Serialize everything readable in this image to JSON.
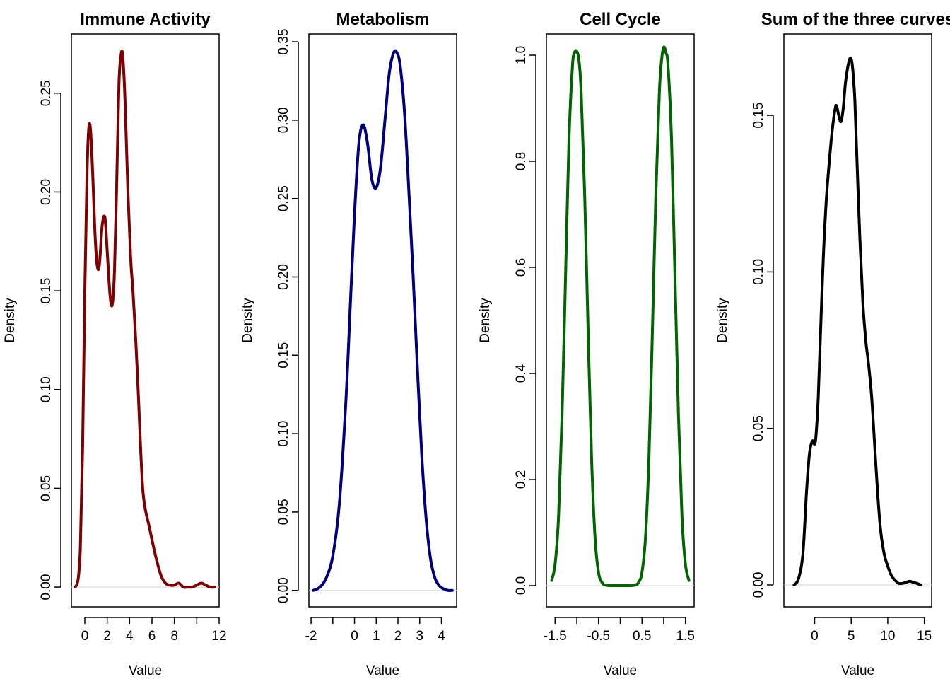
{
  "chart_data": [
    {
      "type": "line",
      "title": "Immune Activity",
      "xlabel": "Value",
      "ylabel": "Density",
      "color": "#7f0000",
      "xlim": [
        -1.2,
        12
      ],
      "ylim": [
        -0.01,
        0.28
      ],
      "xticks": [
        0,
        2,
        4,
        6,
        8,
        10,
        12
      ],
      "xtick_labels": [
        "0",
        "2",
        "4",
        "6",
        "8",
        "",
        "12"
      ],
      "yticks": [
        0.0,
        0.05,
        0.1,
        0.15,
        0.2,
        0.25
      ],
      "ytick_labels": [
        "0.00",
        "0.05",
        "0.10",
        "0.15",
        "0.20",
        "0.25"
      ],
      "series": [
        {
          "x": [
            -0.85,
            -0.6,
            -0.4,
            -0.2,
            0.0,
            0.2,
            0.35,
            0.5,
            0.7,
            0.9,
            1.1,
            1.3,
            1.55,
            1.8,
            2.0,
            2.25,
            2.45,
            2.65,
            2.85,
            3.05,
            3.25,
            3.4,
            3.6,
            3.85,
            4.1,
            4.3,
            4.55,
            4.8,
            5.0,
            5.2,
            5.45,
            5.7,
            6.0,
            6.4,
            6.8,
            7.2,
            7.6,
            8.0,
            8.4,
            8.8,
            9.2,
            9.6,
            10.0,
            10.4,
            10.8,
            11.2,
            11.6
          ],
          "y": [
            0.0,
            0.004,
            0.02,
            0.07,
            0.15,
            0.21,
            0.232,
            0.232,
            0.21,
            0.18,
            0.163,
            0.163,
            0.183,
            0.187,
            0.17,
            0.148,
            0.143,
            0.16,
            0.205,
            0.255,
            0.27,
            0.268,
            0.245,
            0.2,
            0.166,
            0.15,
            0.125,
            0.095,
            0.068,
            0.048,
            0.038,
            0.032,
            0.024,
            0.014,
            0.006,
            0.002,
            0.001,
            0.001,
            0.002,
            0.0,
            0.0,
            0.0,
            0.001,
            0.002,
            0.001,
            0.0,
            0.0
          ]
        }
      ]
    },
    {
      "type": "line",
      "title": "Metabolism",
      "xlabel": "Value",
      "ylabel": "Density",
      "color": "#00007f",
      "xlim": [
        -2.1,
        4.7
      ],
      "ylim": [
        -0.0105,
        0.355
      ],
      "xticks": [
        -2,
        -1,
        0,
        1,
        2,
        3,
        4
      ],
      "xtick_labels": [
        "-2",
        "",
        "0",
        "1",
        "2",
        "3",
        "4"
      ],
      "yticks": [
        0.0,
        0.05,
        0.1,
        0.15,
        0.2,
        0.25,
        0.3,
        0.35
      ],
      "ytick_labels": [
        "0.00",
        "0.05",
        "0.10",
        "0.15",
        "0.20",
        "0.25",
        "0.30",
        "0.35"
      ],
      "series": [
        {
          "x": [
            -1.9,
            -1.6,
            -1.3,
            -1.0,
            -0.7,
            -0.4,
            -0.2,
            0.0,
            0.2,
            0.4,
            0.6,
            0.8,
            1.0,
            1.2,
            1.4,
            1.6,
            1.8,
            1.95,
            2.1,
            2.3,
            2.5,
            2.7,
            2.9,
            3.1,
            3.3,
            3.5,
            3.7,
            3.9,
            4.1,
            4.3,
            4.5
          ],
          "y": [
            0.0,
            0.002,
            0.008,
            0.022,
            0.055,
            0.12,
            0.18,
            0.24,
            0.285,
            0.297,
            0.285,
            0.262,
            0.257,
            0.27,
            0.3,
            0.33,
            0.343,
            0.343,
            0.335,
            0.305,
            0.255,
            0.2,
            0.14,
            0.085,
            0.045,
            0.02,
            0.008,
            0.003,
            0.001,
            0.0,
            0.0
          ]
        }
      ]
    },
    {
      "type": "line",
      "title": "Cell Cycle",
      "xlabel": "Value",
      "ylabel": "Density",
      "color": "#006400",
      "xlim": [
        -1.7,
        1.7
      ],
      "ylim": [
        -0.04,
        1.04
      ],
      "xticks": [
        -1.5,
        -1.0,
        -0.5,
        0.0,
        0.5,
        1.0,
        1.5
      ],
      "xtick_labels": [
        "-1.5",
        "",
        "-0.5",
        "",
        "0.5",
        "",
        "1.5"
      ],
      "yticks": [
        0.0,
        0.2,
        0.4,
        0.6,
        0.8,
        1.0
      ],
      "ytick_labels": [
        "0.0",
        "0.2",
        "0.4",
        "0.6",
        "0.8",
        "1.0"
      ],
      "series": [
        {
          "x": [
            -1.58,
            -1.5,
            -1.42,
            -1.34,
            -1.26,
            -1.18,
            -1.1,
            -1.05,
            -1.0,
            -0.95,
            -0.9,
            -0.82,
            -0.74,
            -0.66,
            -0.58,
            -0.5,
            -0.42,
            -0.34,
            -0.2,
            0.0,
            0.2,
            0.34,
            0.42,
            0.5,
            0.58,
            0.66,
            0.74,
            0.82,
            0.9,
            0.95,
            1.0,
            1.05,
            1.1,
            1.18,
            1.26,
            1.34,
            1.42,
            1.5,
            1.58
          ],
          "y": [
            0.01,
            0.04,
            0.13,
            0.32,
            0.58,
            0.84,
            0.98,
            1.005,
            1.007,
            0.99,
            0.93,
            0.74,
            0.48,
            0.24,
            0.09,
            0.025,
            0.006,
            0.001,
            0.0,
            0.0,
            0.0,
            0.001,
            0.006,
            0.025,
            0.09,
            0.24,
            0.48,
            0.74,
            0.93,
            0.99,
            1.015,
            1.005,
            0.98,
            0.84,
            0.58,
            0.32,
            0.13,
            0.04,
            0.01
          ]
        }
      ]
    },
    {
      "type": "line",
      "title": "Sum of the three curves",
      "xlabel": "Value",
      "ylabel": "Density",
      "color": "#000000",
      "xlim": [
        -4.2,
        16
      ],
      "ylim": [
        -0.007,
        0.176
      ],
      "xticks": [
        0,
        5,
        10,
        15
      ],
      "xtick_labels": [
        "0",
        "5",
        "10",
        "15"
      ],
      "yticks": [
        0.0,
        0.05,
        0.1,
        0.15
      ],
      "ytick_labels": [
        "0.00",
        "0.05",
        "0.10",
        "0.15"
      ],
      "series": [
        {
          "x": [
            -2.8,
            -2.2,
            -1.6,
            -1.1,
            -0.7,
            -0.3,
            0.0,
            0.2,
            0.5,
            0.8,
            1.2,
            1.6,
            2.0,
            2.4,
            2.8,
            3.0,
            3.3,
            3.6,
            3.9,
            4.2,
            4.5,
            4.8,
            5.0,
            5.2,
            5.5,
            5.8,
            6.2,
            6.6,
            7.0,
            7.4,
            7.8,
            8.2,
            8.6,
            9.0,
            9.5,
            10.0,
            10.5,
            11.0,
            11.5,
            12.0,
            12.5,
            13.0,
            13.5,
            14.0,
            14.5
          ],
          "y": [
            0.0,
            0.002,
            0.01,
            0.03,
            0.042,
            0.046,
            0.045,
            0.048,
            0.06,
            0.08,
            0.105,
            0.123,
            0.135,
            0.145,
            0.152,
            0.153,
            0.15,
            0.148,
            0.152,
            0.16,
            0.165,
            0.168,
            0.168,
            0.165,
            0.155,
            0.135,
            0.11,
            0.09,
            0.078,
            0.07,
            0.06,
            0.045,
            0.03,
            0.018,
            0.01,
            0.006,
            0.003,
            0.0015,
            0.0005,
            0.0005,
            0.0008,
            0.0012,
            0.0008,
            0.0005,
            0.0
          ]
        }
      ]
    }
  ]
}
